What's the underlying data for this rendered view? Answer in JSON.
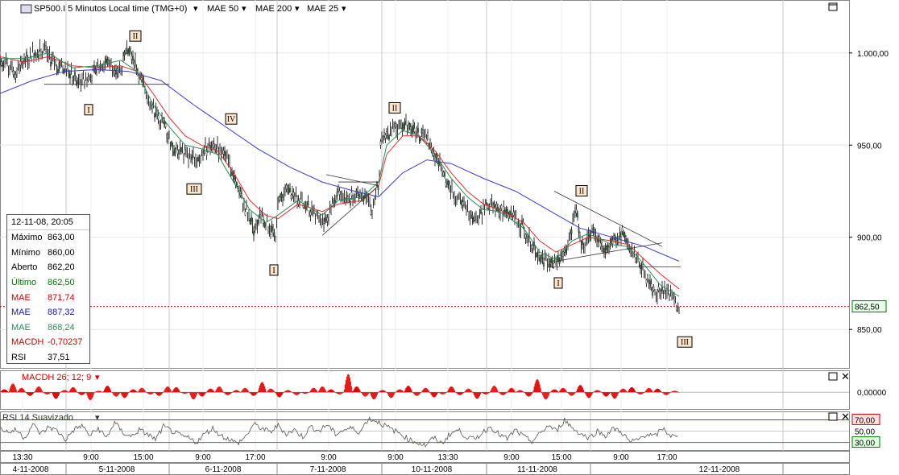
{
  "header": {
    "instrument": "SP500.I 5 Minutos Local time (TMG+0)",
    "ma_labels": [
      {
        "text": "MAE 50",
        "color": "#cc0000"
      },
      {
        "text": "MAE 200",
        "color": "#1a1aa6"
      },
      {
        "text": "MAE 25",
        "color": "#2e8b57"
      }
    ]
  },
  "info_box": {
    "date": "12-11-08, 20:05",
    "rows": [
      {
        "label": "Máximo",
        "value": "863,00",
        "color": "#000000"
      },
      {
        "label": "Mínimo",
        "value": "860,00",
        "color": "#000000"
      },
      {
        "label": "Aberto",
        "value": "862,20",
        "color": "#000000"
      },
      {
        "label": "Último",
        "value": "862,50",
        "color": "#007700"
      },
      {
        "label": "MAE",
        "value": "871,74",
        "color": "#cc0000"
      },
      {
        "label": "MAE",
        "value": "887,32",
        "color": "#1a1aa6"
      },
      {
        "label": "MAE",
        "value": "868,24",
        "color": "#2e8b57"
      },
      {
        "label": "MACDH",
        "value": "-0,70237",
        "color": "#cc0000"
      },
      {
        "label": "RSI",
        "value": "37,51",
        "color": "#000000"
      }
    ]
  },
  "chart_data": [
    {
      "type": "line",
      "panel": "price",
      "ylim": [
        830,
        1020
      ],
      "y_ticks": [
        "1.000,00",
        "950,00",
        "900,00",
        "850,00"
      ],
      "y_tick_values": [
        1000,
        950,
        900,
        850
      ],
      "last_price_label": "862,50",
      "last_price": 862.5,
      "price_path": [
        [
          0,
          995
        ],
        [
          20,
          990
        ],
        [
          40,
          1000
        ],
        [
          55,
          1002
        ],
        [
          65,
          995
        ],
        [
          75,
          992
        ],
        [
          85,
          990
        ],
        [
          95,
          985
        ],
        [
          110,
          986
        ],
        [
          120,
          992
        ],
        [
          135,
          995
        ],
        [
          150,
          990
        ],
        [
          160,
          1005
        ],
        [
          175,
          985
        ],
        [
          190,
          970
        ],
        [
          205,
          960
        ],
        [
          215,
          948
        ],
        [
          230,
          945
        ],
        [
          245,
          942
        ],
        [
          260,
          950
        ],
        [
          270,
          948
        ],
        [
          285,
          940
        ],
        [
          295,
          925
        ],
        [
          305,
          915
        ],
        [
          315,
          905
        ],
        [
          325,
          912
        ],
        [
          335,
          905
        ],
        [
          342,
          899
        ],
        [
          345,
          920
        ],
        [
          355,
          925
        ],
        [
          370,
          922
        ],
        [
          385,
          915
        ],
        [
          400,
          908
        ],
        [
          410,
          915
        ],
        [
          420,
          925
        ],
        [
          435,
          920
        ],
        [
          450,
          925
        ],
        [
          462,
          915
        ],
        [
          470,
          930
        ],
        [
          473,
          953
        ],
        [
          485,
          958
        ],
        [
          495,
          960
        ],
        [
          505,
          962
        ],
        [
          520,
          955
        ],
        [
          530,
          955
        ],
        [
          540,
          945
        ],
        [
          550,
          935
        ],
        [
          560,
          925
        ],
        [
          570,
          920
        ],
        [
          580,
          915
        ],
        [
          595,
          910
        ],
        [
          605,
          918
        ],
        [
          620,
          915
        ],
        [
          635,
          912
        ],
        [
          650,
          905
        ],
        [
          665,
          893
        ],
        [
          675,
          887
        ],
        [
          685,
          885
        ],
        [
          695,
          888
        ],
        [
          705,
          895
        ],
        [
          715,
          917
        ],
        [
          722,
          895
        ],
        [
          735,
          905
        ],
        [
          745,
          897
        ],
        [
          755,
          893
        ],
        [
          765,
          900
        ],
        [
          772,
          902
        ],
        [
          780,
          895
        ],
        [
          790,
          888
        ],
        [
          800,
          880
        ],
        [
          810,
          872
        ],
        [
          820,
          870
        ],
        [
          830,
          870
        ],
        [
          838,
          865
        ],
        [
          843,
          862.5
        ]
      ],
      "mae50_path": [
        [
          0,
          998
        ],
        [
          30,
          995
        ],
        [
          60,
          998
        ],
        [
          90,
          993
        ],
        [
          120,
          992
        ],
        [
          150,
          993
        ],
        [
          170,
          990
        ],
        [
          190,
          978
        ],
        [
          210,
          965
        ],
        [
          230,
          955
        ],
        [
          250,
          950
        ],
        [
          270,
          947
        ],
        [
          290,
          935
        ],
        [
          310,
          920
        ],
        [
          330,
          912
        ],
        [
          345,
          910
        ],
        [
          370,
          918
        ],
        [
          400,
          914
        ],
        [
          420,
          918
        ],
        [
          450,
          920
        ],
        [
          470,
          928
        ],
        [
          480,
          945
        ],
        [
          500,
          955
        ],
        [
          520,
          955
        ],
        [
          540,
          947
        ],
        [
          560,
          935
        ],
        [
          580,
          925
        ],
        [
          600,
          918
        ],
        [
          620,
          915
        ],
        [
          650,
          908
        ],
        [
          670,
          898
        ],
        [
          690,
          892
        ],
        [
          710,
          896
        ],
        [
          730,
          900
        ],
        [
          760,
          898
        ],
        [
          780,
          896
        ],
        [
          800,
          888
        ],
        [
          820,
          880
        ],
        [
          843,
          872
        ]
      ],
      "mae200_path": [
        [
          0,
          978
        ],
        [
          40,
          985
        ],
        [
          80,
          990
        ],
        [
          120,
          991
        ],
        [
          160,
          990
        ],
        [
          200,
          985
        ],
        [
          240,
          972
        ],
        [
          280,
          960
        ],
        [
          320,
          948
        ],
        [
          360,
          938
        ],
        [
          400,
          930
        ],
        [
          440,
          925
        ],
        [
          470,
          922
        ],
        [
          500,
          935
        ],
        [
          530,
          942
        ],
        [
          560,
          940
        ],
        [
          600,
          932
        ],
        [
          640,
          925
        ],
        [
          680,
          915
        ],
        [
          720,
          905
        ],
        [
          760,
          900
        ],
        [
          800,
          895
        ],
        [
          843,
          887
        ]
      ],
      "mae25_path": [
        [
          0,
          997
        ],
        [
          30,
          997
        ],
        [
          60,
          1000
        ],
        [
          90,
          992
        ],
        [
          120,
          993
        ],
        [
          150,
          996
        ],
        [
          170,
          990
        ],
        [
          190,
          972
        ],
        [
          210,
          960
        ],
        [
          230,
          950
        ],
        [
          250,
          948
        ],
        [
          270,
          945
        ],
        [
          290,
          930
        ],
        [
          310,
          915
        ],
        [
          330,
          908
        ],
        [
          345,
          912
        ],
        [
          370,
          920
        ],
        [
          400,
          912
        ],
        [
          420,
          920
        ],
        [
          450,
          922
        ],
        [
          470,
          930
        ],
        [
          480,
          950
        ],
        [
          500,
          958
        ],
        [
          520,
          955
        ],
        [
          540,
          945
        ],
        [
          560,
          932
        ],
        [
          580,
          922
        ],
        [
          600,
          915
        ],
        [
          620,
          914
        ],
        [
          650,
          905
        ],
        [
          670,
          892
        ],
        [
          690,
          888
        ],
        [
          710,
          898
        ],
        [
          730,
          902
        ],
        [
          760,
          896
        ],
        [
          780,
          895
        ],
        [
          800,
          885
        ],
        [
          820,
          874
        ],
        [
          843,
          868
        ]
      ],
      "wave_labels": [
        {
          "text": "II",
          "x": 168,
          "y": 1009
        },
        {
          "text": "I",
          "x": 110,
          "y": 969
        },
        {
          "text": "IV",
          "x": 287,
          "y": 964
        },
        {
          "text": "III",
          "x": 241,
          "y": 926
        },
        {
          "text": "I",
          "x": 340,
          "y": 882
        },
        {
          "text": "II",
          "x": 490,
          "y": 970
        },
        {
          "text": "II",
          "x": 722,
          "y": 925
        },
        {
          "text": "I",
          "x": 693,
          "y": 875
        },
        {
          "text": "III",
          "x": 850,
          "y": 843
        }
      ],
      "trend_lines": [
        {
          "from": [
            55,
            983
          ],
          "to": [
            210,
            983
          ]
        },
        {
          "from": [
            400,
            901
          ],
          "to": [
            470,
            928
          ]
        },
        {
          "from": [
            405,
            934
          ],
          "to": [
            470,
            928
          ]
        },
        {
          "from": [
            420,
            930
          ],
          "to": [
            470,
            930
          ]
        },
        {
          "from": [
            688,
            925
          ],
          "to": [
            822,
            895
          ]
        },
        {
          "from": [
            690,
            887
          ],
          "to": [
            822,
            897
          ]
        },
        {
          "from": [
            680,
            884
          ],
          "to": [
            845,
            884
          ]
        }
      ]
    },
    {
      "type": "bar",
      "panel": "macd",
      "label": "MACDH 26; 12; 9",
      "ylim": [
        -2.2,
        2.8
      ],
      "y_ticks": [
        "0,00000"
      ],
      "y_tick_values": [
        0
      ],
      "values": [
        0.4,
        1.2,
        0.6,
        -0.5,
        0.8,
        -0.3,
        -0.9,
        0.3,
        0.7,
        -0.4,
        -1.1,
        0.2,
        0.9,
        -0.6,
        -0.8,
        0.4,
        0.6,
        -0.3,
        -0.5,
        0.8,
        0.7,
        -0.2,
        -1.0,
        -0.6,
        0.5,
        0.8,
        -0.4,
        0.3,
        0.6,
        -0.5,
        1.4,
        0.5,
        -0.7,
        0.3,
        -0.4,
        -0.2,
        0.6,
        0.8,
        0.4,
        -0.3,
        2.5,
        0.8,
        -0.6,
        -1.0,
        0.3,
        -0.8,
        0.4,
        0.9,
        -0.5,
        0.6,
        -0.7,
        -0.3,
        0.8,
        -0.4,
        0.5,
        -0.9,
        -0.3,
        0.9,
        -0.4,
        0.6,
        0.3,
        -0.6,
        1.8,
        -1.0,
        0.4,
        0.6,
        -0.5,
        1.0,
        -0.8,
        0.3,
        -0.6,
        -0.9,
        0.5,
        0.7,
        -0.3,
        0.6,
        0.5,
        -0.4,
        0.2
      ]
    },
    {
      "type": "line",
      "panel": "rsi",
      "label": "RSI 14 Suavizado",
      "ylim": [
        18,
        82
      ],
      "y_ticks": [
        "70,00",
        "50,00",
        "30,00"
      ],
      "y_tick_values": [
        70,
        50,
        30
      ],
      "overbought": 70,
      "oversold": 30,
      "values": [
        55,
        48,
        52,
        38,
        62,
        45,
        58,
        50,
        35,
        52,
        60,
        42,
        55,
        38,
        65,
        48,
        40,
        52,
        45,
        35,
        58,
        50,
        42,
        38,
        30,
        45,
        55,
        42,
        36,
        28,
        40,
        62,
        55,
        48,
        60,
        45,
        52,
        40,
        58,
        50,
        62,
        45,
        52,
        55,
        48,
        72,
        68,
        60,
        52,
        45,
        35,
        30,
        25,
        38,
        28,
        45,
        52,
        40,
        35,
        48,
        58,
        44,
        36,
        52,
        40,
        32,
        45,
        60,
        50,
        70,
        55,
        45,
        38,
        50,
        42,
        55,
        48,
        30,
        35,
        45,
        40,
        55,
        42,
        38
      ]
    }
  ],
  "x_axis": {
    "time_labels": [
      {
        "text": "13:30",
        "x": 28
      },
      {
        "text": "9:00",
        "x": 113
      },
      {
        "text": "15:00",
        "x": 178
      },
      {
        "text": "9:00",
        "x": 252
      },
      {
        "text": "17:00",
        "x": 317
      },
      {
        "text": "9:00",
        "x": 408
      },
      {
        "text": "9:00",
        "x": 491
      },
      {
        "text": "13:30",
        "x": 556
      },
      {
        "text": "9:00",
        "x": 635
      },
      {
        "text": "15:00",
        "x": 697
      },
      {
        "text": "9:00",
        "x": 771
      },
      {
        "text": "17:00",
        "x": 828
      }
    ],
    "date_labels": [
      {
        "text": "4-11-2008",
        "x": 38
      },
      {
        "text": "5-11-2008",
        "x": 145
      },
      {
        "text": "6-11-2008",
        "x": 277
      },
      {
        "text": "7-11-2008",
        "x": 407
      },
      {
        "text": "10-11-2008",
        "x": 536
      },
      {
        "text": "11-11-2008",
        "x": 667
      },
      {
        "text": "12-11-2008",
        "x": 893
      }
    ]
  }
}
